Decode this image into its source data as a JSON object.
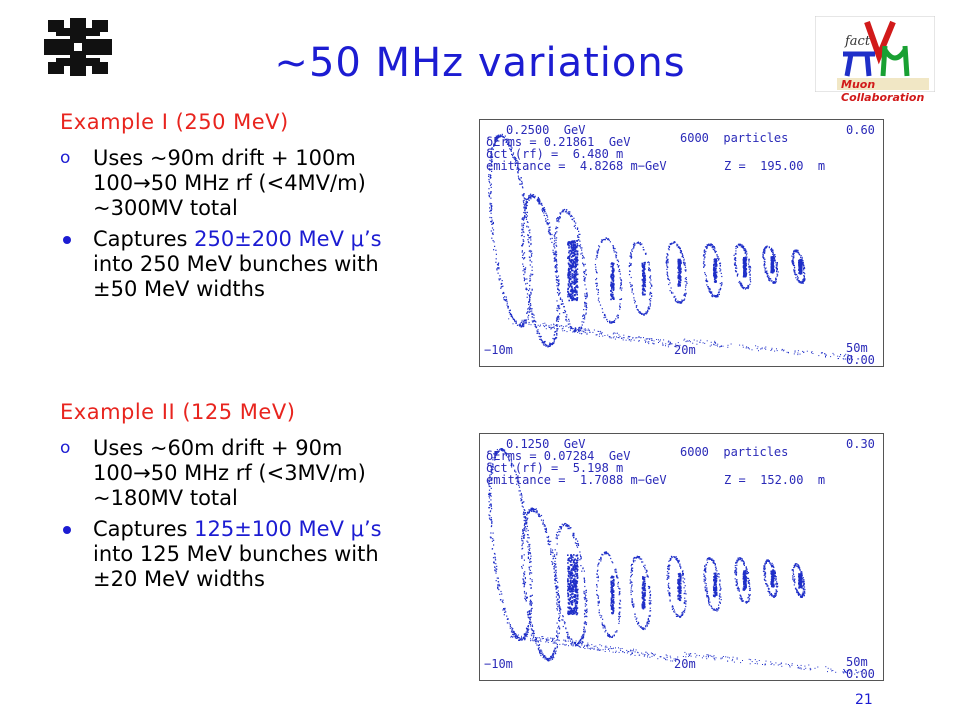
{
  "title": "~50 MHz variations",
  "logo_right": {
    "line1": "fact",
    "line2": "Muon Collaboration"
  },
  "colors": {
    "title": "#1c1cd2",
    "heading": "#e8241e",
    "highlight": "#1c1cd2",
    "plot_points": "#1f2fc8"
  },
  "example1": {
    "heading": "Example I (250 MeV)",
    "b1_marker": "o",
    "b1_l1": "Uses ~90m drift + 100m",
    "b1_l2a": "100",
    "b1_l2arrow": "→",
    "b1_l2b": "50 MHz rf (<4MV/m)",
    "b1_l3": "~300MV total",
    "b2_l1a": "Captures ",
    "b2_l1hl": "250±200 MeV μ’s",
    "b2_l2": "into 250 MeV bunches with",
    "b2_l3": "±50 MeV widths"
  },
  "example2": {
    "heading": "Example II (125 MeV)",
    "b1_marker": "o",
    "b1_l1": "Uses ~60m drift + 90m",
    "b1_l2a": "100",
    "b1_l2arrow": "→",
    "b1_l2b": "50 MHz rf (<3MV/m)",
    "b1_l3": "~180MV total",
    "b2_l1a": "Captures ",
    "b2_l1hl": "125±100 MeV μ’s",
    "b2_l2": "into 125 MeV bunches with",
    "b2_l3": "±20 MeV widths"
  },
  "plot1": {
    "energy": "0.2500  GeV",
    "erms": "δErms = 0.21861  GeV",
    "ct": "δct (rf) =  6.480 m",
    "emittance": "emittance =  4.8268 m−GeV",
    "particles": "6000  particles",
    "z": "Z =  195.00  m",
    "ymax": "0.60",
    "ymin": "0.00",
    "x_left": "−10m",
    "x_mid": "20m",
    "x_right": "50m"
  },
  "plot2": {
    "energy": "0.1250  GeV",
    "erms": "δErms = 0.07284  GeV",
    "ct": "δct (rf) =  5.198 m",
    "emittance": "emittance =  1.7088 m−GeV",
    "particles": "6000  particles",
    "z": "Z =  152.00  m",
    "ymax": "0.30",
    "ymin": "0.00",
    "x_left": "−10m",
    "x_mid": "20m",
    "x_right": "50m"
  },
  "page_number": "21"
}
